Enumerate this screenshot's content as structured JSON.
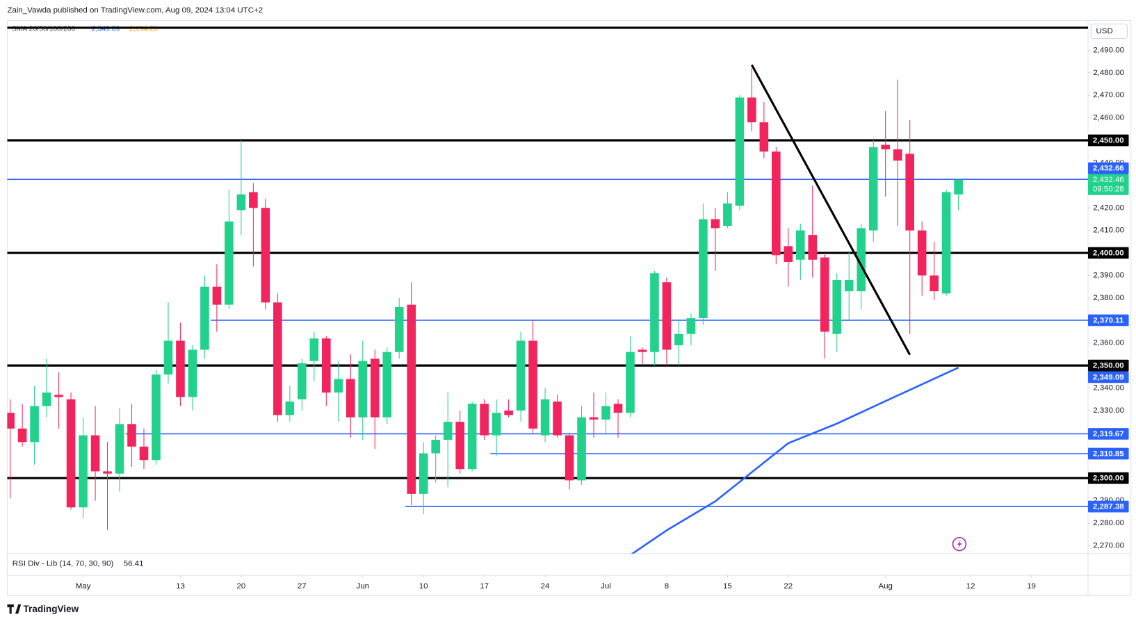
{
  "header": {
    "publisher": "Zain_Vawda published on TradingView.com, Aug 09, 2024 13:04 UTC+2"
  },
  "chart_data": {
    "type": "candlestick",
    "currency": "USD",
    "indicator": {
      "name": "SMA 20/50/100/200",
      "values": [
        2349.09,
        2194.28
      ],
      "value_labels": [
        "2,349.09",
        "2,194.28"
      ],
      "colors": [
        "#2962ff",
        "#f5a623"
      ]
    },
    "up_color": "#22d18b",
    "down_color": "#f2245d",
    "x": [
      "2024-04-23",
      "2024-04-24",
      "2024-04-25",
      "2024-04-26",
      "2024-04-29",
      "2024-04-30",
      "2024-05-01",
      "2024-05-02",
      "2024-05-03",
      "2024-05-06",
      "2024-05-07",
      "2024-05-08",
      "2024-05-09",
      "2024-05-10",
      "2024-05-13",
      "2024-05-14",
      "2024-05-15",
      "2024-05-16",
      "2024-05-17",
      "2024-05-20",
      "2024-05-21",
      "2024-05-22",
      "2024-05-23",
      "2024-05-24",
      "2024-05-27",
      "2024-05-28",
      "2024-05-29",
      "2024-05-30",
      "2024-05-31",
      "2024-06-03",
      "2024-06-04",
      "2024-06-05",
      "2024-06-06",
      "2024-06-07",
      "2024-06-10",
      "2024-06-11",
      "2024-06-12",
      "2024-06-13",
      "2024-06-14",
      "2024-06-17",
      "2024-06-18",
      "2024-06-19",
      "2024-06-20",
      "2024-06-21",
      "2024-06-24",
      "2024-06-25",
      "2024-06-26",
      "2024-06-27",
      "2024-06-28",
      "2024-07-01",
      "2024-07-02",
      "2024-07-03",
      "2024-07-04",
      "2024-07-05",
      "2024-07-08",
      "2024-07-09",
      "2024-07-10",
      "2024-07-11",
      "2024-07-12",
      "2024-07-15",
      "2024-07-16",
      "2024-07-17",
      "2024-07-18",
      "2024-07-19",
      "2024-07-22",
      "2024-07-23",
      "2024-07-24",
      "2024-07-25",
      "2024-07-26",
      "2024-07-29",
      "2024-07-30",
      "2024-07-31",
      "2024-08-01",
      "2024-08-02",
      "2024-08-05",
      "2024-08-06",
      "2024-08-07",
      "2024-08-08",
      "2024-08-09"
    ],
    "open": [
      2329,
      2322,
      2316,
      2332,
      2337,
      2335,
      2287,
      2319,
      2303,
      2302,
      2324,
      2314,
      2308,
      2346,
      2361,
      2336,
      2357,
      2385,
      2377,
      2419,
      2427,
      2420,
      2378,
      2328,
      2335,
      2352,
      2362,
      2338,
      2344,
      2327,
      2353,
      2327,
      2356,
      2377,
      2293,
      2311,
      2317,
      2325,
      2304,
      2333,
      2319,
      2330,
      2330,
      2361,
      2319,
      2334,
      2319,
      2299,
      2327,
      2326,
      2333,
      2329,
      2357,
      2356,
      2387,
      2359,
      2364,
      2371,
      2415,
      2412,
      2421,
      2469,
      2458,
      2445,
      2403,
      2397,
      2408,
      2398,
      2364,
      2383,
      2383,
      2410,
      2448,
      2446,
      2444,
      2410,
      2390,
      2382,
      2426
    ],
    "high": [
      2335,
      2333,
      2341,
      2353,
      2347,
      2338,
      2327,
      2332,
      2316,
      2331,
      2333,
      2322,
      2348,
      2378,
      2369,
      2359,
      2390,
      2395,
      2428,
      2450,
      2431,
      2424,
      2382,
      2341,
      2353,
      2365,
      2363,
      2352,
      2355,
      2361,
      2357,
      2358,
      2380,
      2387,
      2316,
      2319,
      2338,
      2330,
      2334,
      2335,
      2335,
      2335,
      2365,
      2370,
      2340,
      2337,
      2320,
      2332,
      2338,
      2338,
      2335,
      2363,
      2358,
      2392,
      2389,
      2370,
      2373,
      2422,
      2420,
      2427,
      2470,
      2482,
      2467,
      2447,
      2411,
      2413,
      2430,
      2400,
      2391,
      2401,
      2413,
      2450,
      2463,
      2477,
      2459,
      2414,
      2405,
      2428,
      2433
    ],
    "low": [
      2291,
      2314,
      2306,
      2327,
      2322,
      2286,
      2282,
      2290,
      2277,
      2294,
      2305,
      2304,
      2306,
      2342,
      2332,
      2330,
      2353,
      2365,
      2375,
      2408,
      2394,
      2375,
      2325,
      2325,
      2330,
      2343,
      2332,
      2325,
      2318,
      2317,
      2313,
      2324,
      2353,
      2288,
      2284,
      2298,
      2296,
      2302,
      2303,
      2317,
      2310,
      2327,
      2325,
      2320,
      2316,
      2318,
      2295,
      2297,
      2318,
      2320,
      2318,
      2327,
      2350,
      2350,
      2350,
      2350,
      2359,
      2368,
      2392,
      2411,
      2419,
      2454,
      2442,
      2395,
      2385,
      2388,
      2389,
      2353,
      2356,
      2370,
      2375,
      2405,
      2425,
      2412,
      2364,
      2381,
      2379,
      2381,
      2419
    ],
    "close": [
      2322,
      2316,
      2332,
      2338,
      2336,
      2287,
      2319,
      2303,
      2302,
      2324,
      2314,
      2308,
      2346,
      2361,
      2336,
      2357,
      2385,
      2377,
      2414,
      2426,
      2420,
      2378,
      2328,
      2334,
      2351,
      2362,
      2338,
      2344,
      2327,
      2352,
      2327,
      2356,
      2376,
      2293,
      2311,
      2317,
      2325,
      2304,
      2333,
      2319,
      2329,
      2328,
      2361,
      2322,
      2335,
      2319,
      2299,
      2327,
      2326,
      2332,
      2329,
      2356,
      2356,
      2391,
      2357,
      2364,
      2371,
      2415,
      2411,
      2422,
      2469,
      2458,
      2445,
      2399,
      2396,
      2410,
      2397,
      2365,
      2388,
      2388,
      2411,
      2447,
      2446,
      2441,
      2410,
      2390,
      2383,
      2427,
      2432.46
    ],
    "xlim": [
      "2024-04-23",
      "2024-08-23"
    ],
    "xticks": [
      {
        "value": "2024-05-01",
        "label": "May"
      },
      {
        "value": "2024-05-13",
        "label": "13"
      },
      {
        "value": "2024-05-20",
        "label": "20"
      },
      {
        "value": "2024-05-27",
        "label": "27"
      },
      {
        "value": "2024-06-03",
        "label": "Jun"
      },
      {
        "value": "2024-06-10",
        "label": "10"
      },
      {
        "value": "2024-06-17",
        "label": "17"
      },
      {
        "value": "2024-06-24",
        "label": "24"
      },
      {
        "value": "2024-07-01",
        "label": "Jul"
      },
      {
        "value": "2024-07-08",
        "label": "8"
      },
      {
        "value": "2024-07-15",
        "label": "15"
      },
      {
        "value": "2024-07-22",
        "label": "22"
      },
      {
        "value": "2024-08-01",
        "label": "Aug"
      },
      {
        "value": "2024-08-12",
        "label": "12"
      },
      {
        "value": "2024-08-19",
        "label": "19"
      }
    ],
    "ylim": [
      2266.5,
      2502.6
    ],
    "yticks": [
      {
        "value": 2270,
        "label": "2,270.00"
      },
      {
        "value": 2280,
        "label": "2,280.00"
      },
      {
        "value": 2290,
        "label": "2,290.00"
      },
      {
        "value": 2330,
        "label": "2,330.00"
      },
      {
        "value": 2340,
        "label": "2,340.00"
      },
      {
        "value": 2360,
        "label": "2,360.00"
      },
      {
        "value": 2380,
        "label": "2,380.00"
      },
      {
        "value": 2390,
        "label": "2,390.00"
      },
      {
        "value": 2410,
        "label": "2,410.00"
      },
      {
        "value": 2420,
        "label": "2,420.00"
      },
      {
        "value": 2440,
        "label": "2,440.00"
      },
      {
        "value": 2460,
        "label": "2,460.00"
      },
      {
        "value": 2470,
        "label": "2,470.00"
      },
      {
        "value": 2480,
        "label": "2,480.00"
      },
      {
        "value": 2490,
        "label": "2,490.00"
      }
    ],
    "grid": false,
    "levels": [
      {
        "value": 2500,
        "color": "#000000"
      },
      {
        "value": 2450,
        "label": "2,450.00",
        "color": "#000000"
      },
      {
        "value": 2432.66,
        "label": "2,432.66",
        "color": "#2962ff"
      },
      {
        "value": 2400,
        "label": "2,400.00",
        "color": "#000000"
      },
      {
        "value": 2370.11,
        "label": "2,370.11",
        "color": "#2962ff",
        "start": "2024-05-16"
      },
      {
        "value": 2350,
        "label": "2,350.00",
        "color": "#000000"
      },
      {
        "value": 2319.67,
        "label": "2,319.67",
        "color": "#2962ff",
        "start": "2024-05-07"
      },
      {
        "value": 2310.85,
        "label": "2,310.85",
        "color": "#2962ff",
        "start": "2024-06-18"
      },
      {
        "value": 2300,
        "label": "2,300.00",
        "color": "#000000"
      },
      {
        "value": 2287.38,
        "label": "2,287.38",
        "color": "#2962ff",
        "start": "2024-06-07"
      }
    ],
    "last_price": {
      "value": 2432.46,
      "label": "2,432.46",
      "countdown": "09:50:28"
    },
    "sma": {
      "x": [
        "2024-07-03",
        "2024-07-08",
        "2024-07-12",
        "2024-07-17",
        "2024-07-22",
        "2024-07-26",
        "2024-08-01",
        "2024-08-09"
      ],
      "values": [
        2265.8,
        2276.8,
        2289.7,
        2302.6,
        2315.5,
        2324.2,
        2334.2,
        2349.09
      ],
      "color": "#2962ff"
    },
    "trendline": {
      "x": [
        "2024-07-17",
        "2024-08-05"
      ],
      "values": [
        2483.5,
        2354.8
      ],
      "color": "#000000"
    },
    "sub_pane": {
      "title": "RSI Div - Lib (14, 70, 30, 90)",
      "value": 56.41
    }
  },
  "footer": {
    "brand": "TradingView"
  }
}
